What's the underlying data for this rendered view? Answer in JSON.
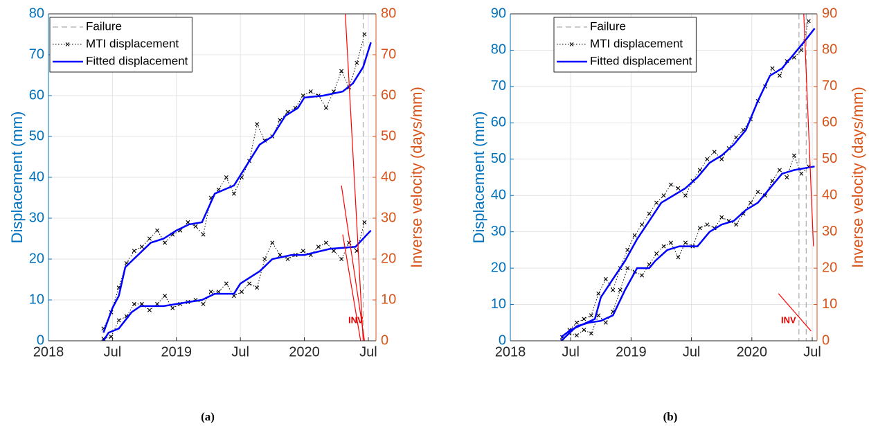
{
  "chart_data": [
    {
      "type": "line",
      "caption": "(a)",
      "ylabel": "Displacement (mm)",
      "y2label": "Inverse velocity (days/mm)",
      "ycolor": "#0072BD",
      "y2color": "#D95319",
      "grid": true,
      "annotation": "INV",
      "annotation_color": "#E00000",
      "xlim": [
        2018,
        2020.56
      ],
      "ylim": [
        0,
        80
      ],
      "y2lim": [
        0,
        80
      ],
      "xticks": [
        2018,
        {
          "value": 2018.5,
          "label": "Jul"
        },
        2019,
        {
          "value": 2019.5,
          "label": "Jul"
        },
        2020,
        {
          "value": 2020.5,
          "label": "Jul"
        }
      ],
      "yticks": [
        0,
        10,
        20,
        30,
        40,
        50,
        60,
        70,
        80
      ],
      "y2ticks": [
        0,
        10,
        20,
        30,
        40,
        50,
        60,
        70,
        80
      ],
      "failure": {
        "name": "Failure",
        "color": "#AAAAAA",
        "x": [
          2020.46
        ]
      },
      "series": [
        {
          "name": "MTI displacement",
          "color": "#000000",
          "linestyle": "dotted",
          "marker": "x",
          "x": [
            2018.43,
            2018.49,
            2018.55,
            2018.61,
            2018.67,
            2018.73,
            2018.79,
            2018.85,
            2018.91,
            2018.97,
            2019.03,
            2019.09,
            2019.15,
            2019.21,
            2019.27,
            2019.33,
            2019.39,
            2019.45,
            2019.51,
            2019.57,
            2019.63,
            2019.69,
            2019.75,
            2019.81,
            2019.87,
            2019.93,
            2019.99,
            2020.05,
            2020.11,
            2020.17,
            2020.23,
            2020.29,
            2020.35,
            2020.41,
            2020.47
          ],
          "values": [
            3,
            7,
            13,
            19,
            22,
            23,
            25,
            27,
            24,
            26,
            27,
            29,
            28,
            26,
            35,
            37,
            40,
            36,
            40,
            44,
            53,
            49,
            50,
            54,
            56,
            57,
            60,
            61,
            60,
            57,
            61,
            66,
            62,
            68,
            75
          ]
        },
        {
          "color": "#000000",
          "linestyle": "dotted",
          "marker": "x",
          "x": [
            2018.43,
            2018.49,
            2018.55,
            2018.61,
            2018.67,
            2018.73,
            2018.79,
            2018.85,
            2018.91,
            2018.97,
            2019.03,
            2019.09,
            2019.15,
            2019.21,
            2019.27,
            2019.33,
            2019.39,
            2019.45,
            2019.51,
            2019.57,
            2019.63,
            2019.69,
            2019.75,
            2019.81,
            2019.87,
            2019.93,
            2019.99,
            2020.05,
            2020.11,
            2020.17,
            2020.23,
            2020.29,
            2020.35,
            2020.41,
            2020.47
          ],
          "values": [
            0.5,
            1,
            5,
            6,
            9,
            9,
            7.5,
            9,
            11,
            8,
            9,
            9.5,
            10,
            9,
            12,
            12,
            14,
            11,
            12,
            14,
            13,
            20,
            24,
            21,
            20,
            21,
            22,
            21,
            23,
            24,
            22,
            20,
            24,
            22,
            29
          ]
        },
        {
          "name": "Fitted displacement",
          "color": "#0000FF",
          "linestyle": "solid",
          "x": [
            2018.43,
            2018.5,
            2018.55,
            2018.6,
            2018.7,
            2018.8,
            2018.9,
            2019.0,
            2019.1,
            2019.2,
            2019.3,
            2019.45,
            2019.55,
            2019.65,
            2019.75,
            2019.85,
            2019.95,
            2020.0,
            2020.15,
            2020.3,
            2020.38,
            2020.46,
            2020.52
          ],
          "values": [
            2,
            8,
            11,
            18,
            21,
            24,
            25,
            27,
            28.5,
            29,
            36,
            38,
            43,
            48,
            50,
            55,
            57,
            59.5,
            60,
            61,
            63,
            67,
            73
          ]
        },
        {
          "color": "#0000FF",
          "linestyle": "solid",
          "x": [
            2018.43,
            2018.47,
            2018.55,
            2018.65,
            2018.72,
            2018.9,
            2019.0,
            2019.1,
            2019.2,
            2019.3,
            2019.45,
            2019.5,
            2019.65,
            2019.75,
            2019.9,
            2020.0,
            2020.2,
            2020.4,
            2020.46,
            2020.52
          ],
          "values": [
            0,
            2,
            3,
            7,
            8.5,
            8.5,
            9,
            9.5,
            10,
            11.5,
            11.5,
            14,
            17,
            20,
            21,
            21,
            22.5,
            23,
            25,
            27
          ]
        },
        {
          "color": "#FF0000",
          "linestyle": "solid",
          "axis": "y2",
          "x": [
            2020.32,
            2020.46
          ],
          "values": [
            80,
            0
          ]
        },
        {
          "color": "#FF0000",
          "linestyle": "solid",
          "axis": "y2",
          "x": [
            2020.29,
            2020.47
          ],
          "values": [
            38,
            0
          ]
        },
        {
          "color": "#FF0000",
          "linestyle": "solid",
          "axis": "y2",
          "x": [
            2020.3,
            2020.44
          ],
          "values": [
            26,
            0
          ]
        }
      ]
    },
    {
      "type": "line",
      "caption": "(b)",
      "ylabel": "Displacement (mm)",
      "y2label": "Inverse velocity (days/mm)",
      "ycolor": "#0072BD",
      "y2color": "#D95319",
      "grid": true,
      "annotation": "INV",
      "annotation_color": "#E00000",
      "xlim": [
        2018,
        2020.54
      ],
      "ylim": [
        0,
        90
      ],
      "y2lim": [
        0,
        90
      ],
      "xticks": [
        2018,
        {
          "value": 2018.5,
          "label": "Jul"
        },
        2019,
        {
          "value": 2019.5,
          "label": "Jul"
        },
        2020,
        {
          "value": 2020.5,
          "label": "Jul"
        }
      ],
      "yticks": [
        0,
        10,
        20,
        30,
        40,
        50,
        60,
        70,
        80,
        90
      ],
      "y2ticks": [
        0,
        10,
        20,
        30,
        40,
        50,
        60,
        70,
        80,
        90
      ],
      "failure": {
        "name": "Failure",
        "color": "#AAAAAA",
        "x": [
          2020.39,
          2020.45
        ]
      },
      "series": [
        {
          "name": "MTI displacement",
          "color": "#000000",
          "linestyle": "dotted",
          "marker": "x",
          "x": [
            2018.43,
            2018.49,
            2018.55,
            2018.61,
            2018.67,
            2018.73,
            2018.79,
            2018.85,
            2018.91,
            2018.97,
            2019.03,
            2019.09,
            2019.15,
            2019.21,
            2019.27,
            2019.33,
            2019.39,
            2019.45,
            2019.51,
            2019.57,
            2019.63,
            2019.69,
            2019.75,
            2019.81,
            2019.87,
            2019.93,
            2019.99,
            2020.05,
            2020.11,
            2020.17,
            2020.23,
            2020.29,
            2020.35,
            2020.41,
            2020.47
          ],
          "values": [
            1,
            3,
            5,
            6,
            7,
            13,
            17,
            14,
            20,
            25,
            29,
            32,
            35,
            38,
            40,
            43,
            42,
            40,
            44,
            47,
            50,
            52,
            50,
            53,
            56,
            58,
            61,
            66,
            70,
            75,
            73,
            77,
            78,
            80,
            88
          ]
        },
        {
          "color": "#000000",
          "linestyle": "dotted",
          "marker": "x",
          "x": [
            2018.43,
            2018.49,
            2018.55,
            2018.61,
            2018.67,
            2018.73,
            2018.79,
            2018.85,
            2018.91,
            2018.97,
            2019.03,
            2019.09,
            2019.15,
            2019.21,
            2019.27,
            2019.33,
            2019.39,
            2019.45,
            2019.51,
            2019.57,
            2019.63,
            2019.69,
            2019.75,
            2019.81,
            2019.87,
            2019.93,
            2019.99,
            2020.05,
            2020.11,
            2020.17,
            2020.23,
            2020.29,
            2020.35,
            2020.41,
            2020.47
          ],
          "values": [
            0,
            2,
            1.5,
            3,
            2,
            7,
            5,
            8,
            14,
            20,
            19,
            18,
            21,
            24,
            26,
            27,
            23,
            27,
            26,
            31,
            32,
            31,
            34,
            33,
            32,
            35,
            38,
            41,
            40,
            44,
            47,
            45,
            51,
            46,
            48
          ]
        },
        {
          "name": "Fitted displacement",
          "color": "#0000FF",
          "linestyle": "solid",
          "x": [
            2018.42,
            2018.5,
            2018.6,
            2018.7,
            2018.75,
            2018.85,
            2018.95,
            2019.05,
            2019.15,
            2019.25,
            2019.35,
            2019.45,
            2019.55,
            2019.65,
            2019.75,
            2019.85,
            2019.95,
            2020.05,
            2020.15,
            2020.25,
            2020.35,
            2020.45,
            2020.52
          ],
          "values": [
            1,
            3,
            4.5,
            6,
            12,
            17,
            22,
            28,
            33,
            38,
            40,
            42,
            45,
            49,
            51,
            54,
            58,
            66,
            73,
            75,
            79,
            83,
            86
          ]
        },
        {
          "color": "#0000FF",
          "linestyle": "solid",
          "x": [
            2018.42,
            2018.55,
            2018.65,
            2018.75,
            2018.85,
            2018.95,
            2019.05,
            2019.15,
            2019.2,
            2019.3,
            2019.4,
            2019.55,
            2019.65,
            2019.75,
            2019.85,
            2019.95,
            2020.05,
            2020.15,
            2020.25,
            2020.35,
            2020.52
          ],
          "values": [
            0,
            4,
            5,
            5.5,
            7,
            14,
            20,
            20,
            22,
            25,
            26,
            26,
            30,
            32,
            33,
            36,
            38,
            42,
            46,
            47,
            48
          ]
        },
        {
          "color": "#FF0000",
          "linestyle": "solid",
          "axis": "y2",
          "x": [
            2020.43,
            2020.51
          ],
          "values": [
            90,
            26
          ]
        },
        {
          "color": "#FF0000",
          "linestyle": "solid",
          "axis": "y2",
          "x": [
            2020.22,
            2020.49
          ],
          "values": [
            13,
            2.7
          ]
        }
      ]
    }
  ]
}
